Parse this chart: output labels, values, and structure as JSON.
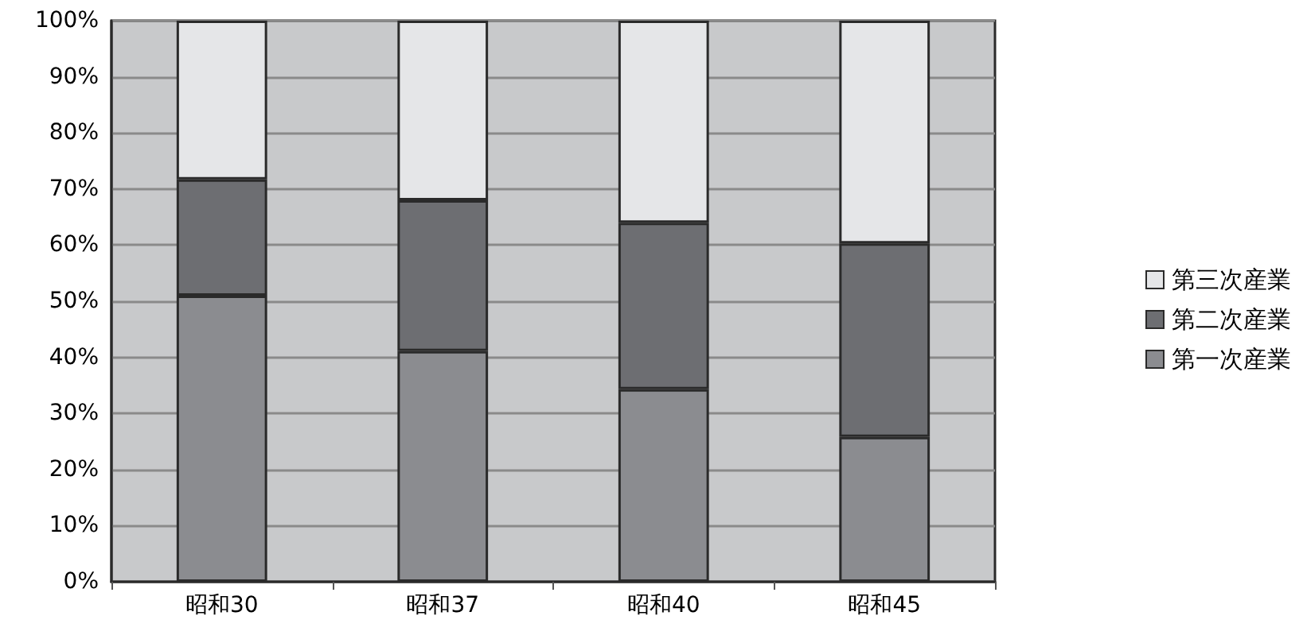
{
  "chart_data": {
    "type": "bar",
    "stacked": true,
    "categories": [
      "昭和30",
      "昭和37",
      "昭和40",
      "昭和45"
    ],
    "series": [
      {
        "name": "第一次産業",
        "color": "#8b8c90",
        "values": [
          51.0,
          41.1,
          34.3,
          25.8
        ]
      },
      {
        "name": "第二次産業",
        "color": "#6d6e72",
        "values": [
          20.7,
          26.9,
          29.7,
          34.5
        ]
      },
      {
        "name": "第三次産業",
        "color": "#e5e6e8",
        "values": [
          28.3,
          32.0,
          36.0,
          39.7
        ]
      }
    ],
    "ylim": [
      0,
      100
    ],
    "yticks": [
      {
        "value": 0,
        "label": "0%"
      },
      {
        "value": 10,
        "label": "10%"
      },
      {
        "value": 20,
        "label": "20%"
      },
      {
        "value": 30,
        "label": "30%"
      },
      {
        "value": 40,
        "label": "40%"
      },
      {
        "value": 50,
        "label": "50%"
      },
      {
        "value": 60,
        "label": "60%"
      },
      {
        "value": 70,
        "label": "70%"
      },
      {
        "value": 80,
        "label": "80%"
      },
      {
        "value": 90,
        "label": "90%"
      },
      {
        "value": 100,
        "label": "100%"
      }
    ],
    "grid": "y",
    "legend": "right"
  }
}
